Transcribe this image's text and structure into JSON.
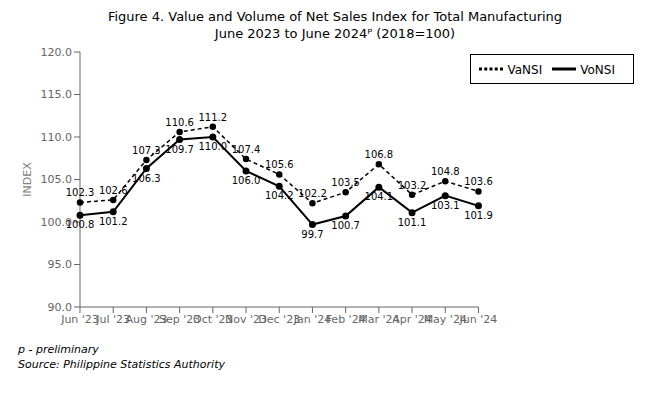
{
  "chart_data": {
    "type": "line",
    "title": "Figure 4. Value and Volume of Net Sales Index for Total Manufacturing",
    "subtitle": "June 2023 to June 2024ᴾ (2018=100)",
    "y_label": "INDEX",
    "annotations": [
      "p - preliminary",
      "Source: Philippine Statistics Authority"
    ],
    "categories": [
      "Jun '23",
      "Jul '23",
      "Aug '23",
      "Sep '23",
      "Oct '23",
      "Nov '23",
      "Dec '23",
      "Jan '24",
      "Feb '24",
      "Mar '24",
      "Apr '24",
      "May '24",
      "Jun '24"
    ],
    "series": [
      {
        "name": "VaNSI",
        "color": "#000000",
        "line_style": "dashed",
        "marker": "circle",
        "values": [
          102.3,
          102.6,
          107.3,
          110.6,
          111.2,
          107.4,
          105.6,
          102.2,
          103.5,
          106.8,
          103.2,
          104.8,
          103.6
        ]
      },
      {
        "name": "VoNSI",
        "color": "#000000",
        "line_style": "solid",
        "marker": "circle",
        "values": [
          100.8,
          101.2,
          106.3,
          109.7,
          110.0,
          106.0,
          104.2,
          99.7,
          100.7,
          104.1,
          101.1,
          103.1,
          101.9
        ],
        "value_labels": [
          "100.8",
          "101.2",
          "106.3",
          "109.7",
          "110.0",
          "106.0",
          "104.2",
          "99.7",
          "100.7",
          "104.1",
          "101.1",
          "103.1",
          "101.9"
        ]
      }
    ],
    "ylim": [
      90.0,
      120.0
    ],
    "yticks": [
      {
        "value": 90,
        "label": "90.0"
      },
      {
        "value": 95,
        "label": "95.0"
      },
      {
        "value": 100,
        "label": "100.0"
      },
      {
        "value": 105,
        "label": "105.0"
      },
      {
        "value": 110,
        "label": "110.0"
      },
      {
        "value": 115,
        "label": "115.0"
      },
      {
        "value": 120,
        "label": "120.0"
      }
    ],
    "data_labels": true,
    "grid": false,
    "legend": "upper right"
  }
}
